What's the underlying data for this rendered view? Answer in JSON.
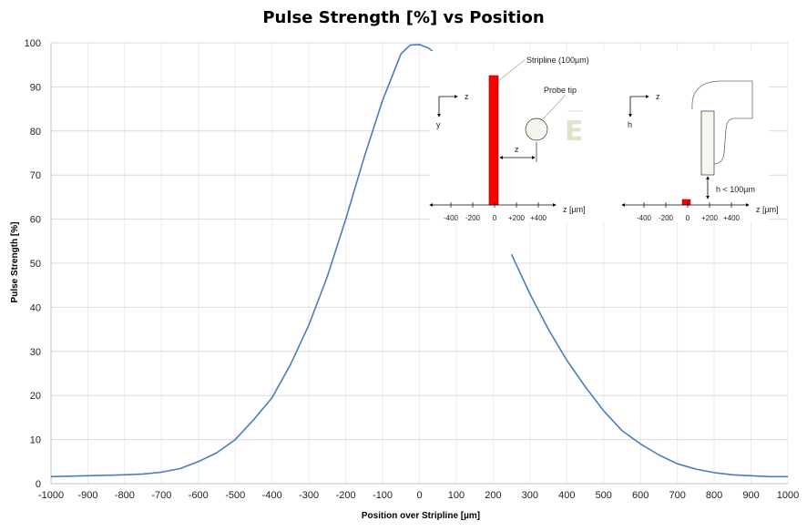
{
  "chart_data": {
    "type": "line",
    "title": "Pulse Strength [%] vs Position",
    "xlabel": "Position over Stripline [µm]",
    "ylabel": "Pulse Strength [%]",
    "xlim": [
      -1000,
      1000
    ],
    "ylim": [
      0,
      100
    ],
    "x_ticks": [
      -1000,
      -900,
      -800,
      -700,
      -600,
      -500,
      -400,
      -300,
      -200,
      -100,
      0,
      100,
      200,
      300,
      400,
      500,
      600,
      700,
      800,
      900,
      1000
    ],
    "y_ticks": [
      0,
      10,
      20,
      30,
      40,
      50,
      60,
      70,
      80,
      90,
      100
    ],
    "grid": true,
    "series_color": "#4a7ebb",
    "series": [
      {
        "x": [
          -1000,
          -950,
          -900,
          -850,
          -800,
          -750,
          -700,
          -650,
          -600,
          -550,
          -500,
          -450,
          -400,
          -350,
          -300,
          -250,
          -200,
          -150,
          -100,
          -50,
          -25,
          0,
          25,
          50
        ],
        "y": [
          1.6,
          1.7,
          1.8,
          1.9,
          2.0,
          2.2,
          2.6,
          3.4,
          5.0,
          7.0,
          10.0,
          14.5,
          19.5,
          27.0,
          36.0,
          47.0,
          60.0,
          74.0,
          87.0,
          97.5,
          99.5,
          99.6,
          98.8,
          97.0
        ]
      },
      {
        "x": [
          250,
          300,
          350,
          400,
          450,
          500,
          550,
          600,
          650,
          700,
          750,
          800,
          850,
          900,
          950,
          1000
        ],
        "y": [
          52.0,
          43.0,
          35.0,
          28.0,
          22.0,
          16.5,
          12.0,
          9.0,
          6.5,
          4.5,
          3.3,
          2.5,
          2.0,
          1.8,
          1.6,
          1.6
        ]
      }
    ],
    "inset": {
      "left": {
        "axis_z": "z",
        "axis_y": "y",
        "stripline_label": "Stripline (100µm)",
        "probe_label": "Probe tip",
        "gap_label": "z",
        "field_symbol": "E",
        "scale_label": "z [µm]",
        "scale_ticks": [
          "-400",
          "-200",
          "0",
          "+200",
          "+400"
        ]
      },
      "right": {
        "axis_z": "z",
        "axis_h": "h",
        "height_label": "h < 100µm",
        "scale_label": "z [µm]",
        "scale_ticks": [
          "-400",
          "-200",
          "0",
          "+200",
          "+400"
        ]
      },
      "stripline_color": "#ff0000"
    }
  }
}
